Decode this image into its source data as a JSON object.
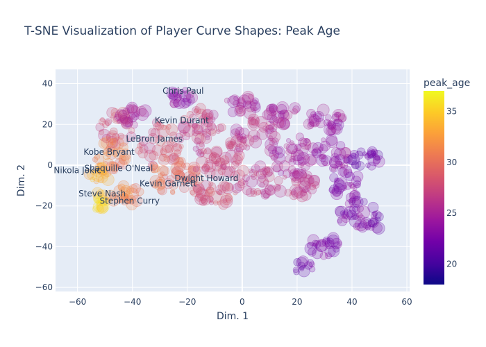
{
  "chart_data": {
    "type": "scatter",
    "title": "T-SNE Visualization of Player Curve Shapes: Peak Age",
    "xlabel": "Dim. 1",
    "ylabel": "Dim. 2",
    "xlim": [
      -68,
      61
    ],
    "ylim": [
      -62,
      47
    ],
    "xticks": [
      -60,
      -40,
      -20,
      0,
      20,
      40,
      60
    ],
    "yticks": [
      -60,
      -40,
      -20,
      0,
      20,
      40
    ],
    "grid": true,
    "colorbar": {
      "title": "peak_age",
      "range": [
        18,
        37
      ],
      "ticks": [
        20,
        25,
        30,
        35
      ],
      "colorscale": [
        "#0d0887",
        "#46039f",
        "#7201a8",
        "#9c179e",
        "#bd3786",
        "#d8576b",
        "#ed7953",
        "#fb9f3a",
        "#fdca26",
        "#f0f921"
      ]
    },
    "annotations": [
      {
        "text": "Chris Paul",
        "x": -21.5,
        "y": 36.5
      },
      {
        "text": "Kevin Durant",
        "x": -22,
        "y": 22
      },
      {
        "text": "LeBron James",
        "x": -32,
        "y": 13
      },
      {
        "text": "Kobe Bryant",
        "x": -48.5,
        "y": 6.5
      },
      {
        "text": "Shaquille O'Neal",
        "x": -45,
        "y": -1.5
      },
      {
        "text": "Nikola Jokic",
        "x": -60,
        "y": -2.5
      },
      {
        "text": "Dwight Howard",
        "x": -13,
        "y": -6.5
      },
      {
        "text": "Kevin Garnett",
        "x": -27,
        "y": -9
      },
      {
        "text": "Steve Nash",
        "x": -51,
        "y": -14
      },
      {
        "text": "Stephen Curry",
        "x": -41,
        "y": -17.5
      }
    ],
    "clusters": [
      {
        "cx": -45,
        "cy": 18,
        "rx": 7,
        "ry": 9,
        "age": 28,
        "n": 30
      },
      {
        "cx": -40,
        "cy": 24,
        "rx": 6,
        "ry": 5,
        "age": 25,
        "n": 25
      },
      {
        "cx": -48,
        "cy": 4,
        "rx": 6,
        "ry": 8,
        "age": 31,
        "n": 35
      },
      {
        "cx": -52,
        "cy": -5,
        "rx": 4,
        "ry": 5,
        "age": 34,
        "n": 15
      },
      {
        "cx": -52,
        "cy": -17,
        "rx": 4,
        "ry": 5,
        "age": 35,
        "n": 18
      },
      {
        "cx": -42,
        "cy": -15,
        "rx": 6,
        "ry": 5,
        "age": 31,
        "n": 25
      },
      {
        "cx": -30,
        "cy": 10,
        "rx": 8,
        "ry": 12,
        "age": 28,
        "n": 45
      },
      {
        "cx": -25,
        "cy": -5,
        "rx": 9,
        "ry": 9,
        "age": 30,
        "n": 50
      },
      {
        "cx": -22,
        "cy": 33,
        "rx": 5,
        "ry": 4,
        "age": 24,
        "n": 20
      },
      {
        "cx": -15,
        "cy": 20,
        "rx": 8,
        "ry": 8,
        "age": 27,
        "n": 40
      },
      {
        "cx": -10,
        "cy": 5,
        "rx": 10,
        "ry": 10,
        "age": 27,
        "n": 60
      },
      {
        "cx": -10,
        "cy": -15,
        "rx": 9,
        "ry": 6,
        "age": 28,
        "n": 40
      },
      {
        "cx": 0,
        "cy": 30,
        "rx": 6,
        "ry": 5,
        "age": 25,
        "n": 25
      },
      {
        "cx": 5,
        "cy": 15,
        "rx": 8,
        "ry": 8,
        "age": 26,
        "n": 40
      },
      {
        "cx": 5,
        "cy": -8,
        "rx": 8,
        "ry": 8,
        "age": 27,
        "n": 40
      },
      {
        "cx": 15,
        "cy": 25,
        "rx": 6,
        "ry": 5,
        "age": 25,
        "n": 25
      },
      {
        "cx": 18,
        "cy": 5,
        "rx": 8,
        "ry": 10,
        "age": 25,
        "n": 45
      },
      {
        "cx": 20,
        "cy": -10,
        "rx": 8,
        "ry": 6,
        "age": 26,
        "n": 35
      },
      {
        "cx": 30,
        "cy": 22,
        "rx": 7,
        "ry": 6,
        "age": 24,
        "n": 35
      },
      {
        "cx": 32,
        "cy": 5,
        "rx": 7,
        "ry": 8,
        "age": 24,
        "n": 35
      },
      {
        "cx": 38,
        "cy": -10,
        "rx": 6,
        "ry": 7,
        "age": 23,
        "n": 30
      },
      {
        "cx": 45,
        "cy": 3,
        "rx": 6,
        "ry": 4,
        "age": 22,
        "n": 25
      },
      {
        "cx": 42,
        "cy": -25,
        "rx": 7,
        "ry": 8,
        "age": 23,
        "n": 35
      },
      {
        "cx": 48,
        "cy": -28,
        "rx": 3,
        "ry": 4,
        "age": 22,
        "n": 12
      },
      {
        "cx": 30,
        "cy": -40,
        "rx": 6,
        "ry": 5,
        "age": 23,
        "n": 25
      },
      {
        "cx": 22,
        "cy": -50,
        "rx": 4,
        "ry": 3,
        "age": 22,
        "n": 12
      }
    ]
  }
}
